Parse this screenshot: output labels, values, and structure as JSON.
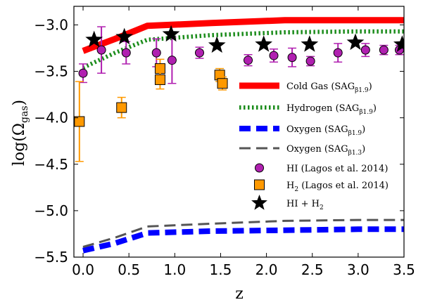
{
  "chart_data": {
    "type": "line",
    "xlabel": "z",
    "ylabel_main": "log(Ω",
    "ylabel_sub": "gas",
    "ylabel_close": ")",
    "xlim": [
      -0.1,
      3.5
    ],
    "ylim": [
      -5.5,
      -2.8
    ],
    "xticks": [
      0.0,
      0.5,
      1.0,
      1.5,
      2.0,
      2.5,
      3.0,
      3.5
    ],
    "xtick_labels": [
      "0.0",
      "0.5",
      "1.0",
      "1.5",
      "2.0",
      "2.5",
      "3.0",
      "3.5"
    ],
    "yticks": [
      -5.5,
      -5.0,
      -4.5,
      -4.0,
      -3.5,
      -3.0
    ],
    "ytick_labels": [
      "−5.5",
      "−5.0",
      "−4.5",
      "−4.0",
      "−3.5",
      "−3.0"
    ],
    "legend_position": "center-right",
    "series": [
      {
        "name": "Cold Gas (SAG",
        "name_sub": "β1.9",
        "name_close": ")",
        "kind": "line",
        "style": "solid",
        "color": "#ff0000",
        "x": [
          0.0,
          0.35,
          0.7,
          1.4,
          2.2,
          3.0,
          3.5
        ],
        "y": [
          -3.28,
          -3.15,
          -3.01,
          -2.98,
          -2.95,
          -2.95,
          -2.95
        ]
      },
      {
        "name": "Hydrogen (SAG",
        "name_sub": "β1.9",
        "name_close": ")",
        "kind": "line",
        "style": "dotted",
        "color": "#1b8c1b",
        "x": [
          0.0,
          0.35,
          0.7,
          1.4,
          2.2,
          3.0,
          3.5
        ],
        "y": [
          -3.46,
          -3.3,
          -3.16,
          -3.11,
          -3.08,
          -3.07,
          -3.07
        ]
      },
      {
        "name": "Oxygen (SAG",
        "name_sub": "β1.9",
        "name_close": ")",
        "kind": "line",
        "style": "dashed",
        "color": "#0000ff",
        "x": [
          0.0,
          0.35,
          0.7,
          1.4,
          2.2,
          3.0,
          3.5
        ],
        "y": [
          -5.43,
          -5.35,
          -5.24,
          -5.22,
          -5.21,
          -5.2,
          -5.2
        ]
      },
      {
        "name": "Oxygen (SAG",
        "name_sub": "β1.3",
        "name_close": ")",
        "kind": "line",
        "style": "longdash",
        "color": "#555555",
        "x": [
          0.0,
          0.35,
          0.7,
          1.4,
          2.2,
          3.0,
          3.5
        ],
        "y": [
          -5.39,
          -5.29,
          -5.17,
          -5.14,
          -5.11,
          -5.1,
          -5.1
        ]
      },
      {
        "name": "HI (Lagos et al. 2014)",
        "kind": "errorbar",
        "marker": "circle",
        "color": "#b020b0",
        "edge": "#000000",
        "x": [
          0.0,
          0.2,
          0.47,
          0.8,
          0.97,
          1.27,
          1.8,
          2.08,
          2.28,
          2.48,
          2.78,
          3.08,
          3.28,
          3.45,
          3.55
        ],
        "y": [
          -3.52,
          -3.27,
          -3.3,
          -3.3,
          -3.38,
          -3.3,
          -3.38,
          -3.33,
          -3.35,
          -3.39,
          -3.3,
          -3.27,
          -3.27,
          -3.27,
          -3.34
        ],
        "yerr": [
          0.1,
          0.25,
          0.12,
          0.15,
          0.25,
          0.06,
          0.06,
          0.07,
          0.1,
          0.05,
          0.1,
          0.07,
          0.05,
          0.05,
          0.2
        ]
      },
      {
        "name": "H",
        "name_sub": "2",
        "name_close": " (Lagos et al. 2014)",
        "kind": "errorbar",
        "marker": "square",
        "color": "#ff9900",
        "edge": "#000000",
        "x": [
          -0.04,
          0.42,
          0.84,
          0.84,
          1.49,
          1.52
        ],
        "y": [
          -4.04,
          -3.89,
          -3.47,
          -3.59,
          -3.54,
          -3.63
        ],
        "yerr": [
          0.43,
          0.11,
          0.1,
          0.1,
          0.07,
          0.07
        ]
      },
      {
        "name": "HI + H",
        "name_sub": "2",
        "name_close": "",
        "kind": "scatter",
        "marker": "star",
        "color": "#000000",
        "x": [
          0.12,
          0.45,
          0.96,
          1.46,
          1.97,
          2.47,
          2.97,
          3.48
        ],
        "y": [
          -3.16,
          -3.13,
          -3.1,
          -3.22,
          -3.21,
          -3.21,
          -3.19,
          -3.21
        ]
      }
    ]
  }
}
